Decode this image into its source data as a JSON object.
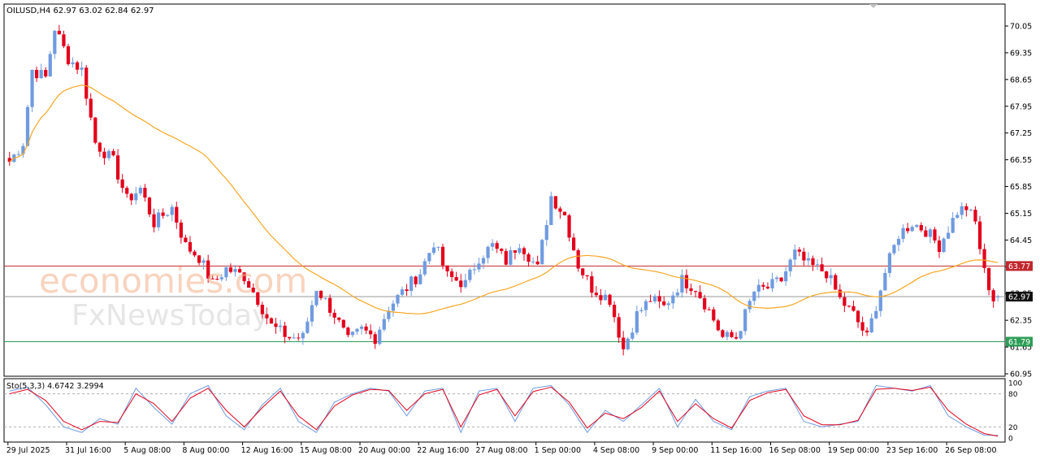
{
  "header": {
    "symbol_info": "OILUSD,H4  62.97 63.02 62.84 62.97",
    "oscillator_info": "Sto(5,3,3) 4.6742 3.2994"
  },
  "watermark": {
    "line1": "economies.com",
    "line2": "FxNewsToday"
  },
  "colors": {
    "bull": "#6f9be0",
    "bear": "#e3001b",
    "ma": "#f5a623",
    "resistance": "#c1272d",
    "support": "#2e9e57",
    "price_tag": "#111111",
    "stoch_main": "#6f9be0",
    "stoch_signal": "#e3001b"
  },
  "chart_data": [
    {
      "type": "candlestick",
      "symbol": "OILUSD",
      "timeframe": "H4",
      "ohlc": {
        "open": 62.97,
        "high": 63.02,
        "low": 62.84,
        "close": 62.97
      },
      "y_ticks": [
        "70.05",
        "69.35",
        "68.65",
        "67.95",
        "67.25",
        "66.55",
        "65.85",
        "65.15",
        "64.45",
        "63.75",
        "63.05",
        "62.35",
        "61.65",
        "60.95"
      ],
      "ylim": [
        60.95,
        70.05
      ],
      "x_labels": [
        "29 Jul 2025",
        "31 Jul 16:00",
        "5 Aug 08:00",
        "8 Aug 00:00",
        "12 Aug 16:00",
        "15 Aug 08:00",
        "20 Aug 00:00",
        "22 Aug 16:00",
        "27 Aug 08:00",
        "1 Sep 00:00",
        "4 Sep 08:00",
        "9 Sep 00:00",
        "11 Sep 16:00",
        "16 Sep 08:00",
        "19 Sep 00:00",
        "23 Sep 16:00",
        "26 Sep 08:00"
      ],
      "candle_count": 220,
      "close_path": [
        [
          0,
          66.5
        ],
        [
          3,
          67.0
        ],
        [
          5,
          68.9
        ],
        [
          8,
          68.7
        ],
        [
          10,
          70.0
        ],
        [
          13,
          69.2
        ],
        [
          16,
          68.9
        ],
        [
          19,
          67.0
        ],
        [
          23,
          66.5
        ],
        [
          26,
          65.5
        ],
        [
          29,
          65.8
        ],
        [
          32,
          64.9
        ],
        [
          36,
          65.3
        ],
        [
          39,
          64.3
        ],
        [
          42,
          64.0
        ],
        [
          45,
          63.3
        ],
        [
          48,
          63.7
        ],
        [
          52,
          63.5
        ],
        [
          55,
          62.9
        ],
        [
          58,
          62.2
        ],
        [
          62,
          61.9
        ],
        [
          65,
          61.9
        ],
        [
          68,
          63.2
        ],
        [
          72,
          62.5
        ],
        [
          75,
          61.8
        ],
        [
          78,
          62.1
        ],
        [
          81,
          61.9
        ],
        [
          84,
          62.7
        ],
        [
          88,
          63.2
        ],
        [
          91,
          63.6
        ],
        [
          94,
          64.4
        ],
        [
          97,
          63.5
        ],
        [
          101,
          63.3
        ],
        [
          104,
          64.0
        ],
        [
          107,
          64.3
        ],
        [
          110,
          63.9
        ],
        [
          113,
          64.4
        ],
        [
          117,
          63.7
        ],
        [
          120,
          65.6
        ],
        [
          123,
          65.1
        ],
        [
          126,
          63.8
        ],
        [
          129,
          63.2
        ],
        [
          133,
          62.9
        ],
        [
          136,
          61.6
        ],
        [
          139,
          62.5
        ],
        [
          142,
          62.9
        ],
        [
          145,
          62.7
        ],
        [
          149,
          63.4
        ],
        [
          152,
          63.2
        ],
        [
          155,
          62.6
        ],
        [
          158,
          61.9
        ],
        [
          161,
          61.9
        ],
        [
          165,
          63.1
        ],
        [
          168,
          63.2
        ],
        [
          171,
          63.4
        ],
        [
          174,
          64.1
        ],
        [
          177,
          63.8
        ],
        [
          181,
          63.6
        ],
        [
          184,
          62.9
        ],
        [
          187,
          62.5
        ],
        [
          190,
          61.9
        ],
        [
          194,
          63.6
        ],
        [
          197,
          64.6
        ],
        [
          200,
          64.9
        ],
        [
          203,
          64.7
        ],
        [
          206,
          64.3
        ],
        [
          210,
          65.2
        ],
        [
          212,
          65.3
        ],
        [
          214,
          64.9
        ],
        [
          216,
          63.6
        ],
        [
          218,
          62.9
        ],
        [
          219,
          62.97
        ]
      ],
      "indicator": {
        "name": "Moving Average",
        "color": "orange"
      },
      "horizontal_levels": [
        {
          "value": 63.77,
          "label": "63.77",
          "color": "red"
        },
        {
          "value": 62.97,
          "label": "62.97",
          "color": "black"
        },
        {
          "value": 61.79,
          "label": "61.79",
          "color": "green"
        }
      ]
    },
    {
      "type": "line",
      "title": "Sto(5,3,3) 4.6742 3.2994",
      "y_ticks": [
        "100",
        "80",
        "20",
        "0"
      ],
      "ylim": [
        0,
        100
      ],
      "levels": [
        80,
        20
      ],
      "series": [
        {
          "name": "Sto(5,3,3)",
          "last": 4.6742,
          "values_path": [
            [
              0,
              85
            ],
            [
              4,
              92
            ],
            [
              8,
              60
            ],
            [
              12,
              20
            ],
            [
              16,
              10
            ],
            [
              20,
              35
            ],
            [
              24,
              25
            ],
            [
              28,
              90
            ],
            [
              32,
              55
            ],
            [
              36,
              25
            ],
            [
              40,
              80
            ],
            [
              44,
              95
            ],
            [
              48,
              40
            ],
            [
              52,
              15
            ],
            [
              56,
              60
            ],
            [
              60,
              90
            ],
            [
              64,
              30
            ],
            [
              68,
              10
            ],
            [
              72,
              65
            ],
            [
              76,
              80
            ],
            [
              80,
              90
            ],
            [
              84,
              85
            ],
            [
              88,
              40
            ],
            [
              92,
              85
            ],
            [
              96,
              90
            ],
            [
              100,
              10
            ],
            [
              104,
              85
            ],
            [
              108,
              90
            ],
            [
              112,
              30
            ],
            [
              116,
              90
            ],
            [
              120,
              95
            ],
            [
              124,
              60
            ],
            [
              128,
              10
            ],
            [
              132,
              50
            ],
            [
              136,
              30
            ],
            [
              140,
              60
            ],
            [
              144,
              90
            ],
            [
              148,
              20
            ],
            [
              152,
              70
            ],
            [
              156,
              30
            ],
            [
              160,
              15
            ],
            [
              164,
              75
            ],
            [
              168,
              85
            ],
            [
              172,
              90
            ],
            [
              176,
              30
            ],
            [
              180,
              20
            ],
            [
              184,
              25
            ],
            [
              188,
              30
            ],
            [
              192,
              95
            ],
            [
              196,
              90
            ],
            [
              200,
              85
            ],
            [
              204,
              95
            ],
            [
              208,
              40
            ],
            [
              212,
              20
            ],
            [
              216,
              5
            ],
            [
              219,
              4.67
            ]
          ]
        },
        {
          "name": "Signal",
          "last": 3.2994,
          "values_path": [
            [
              0,
              80
            ],
            [
              4,
              88
            ],
            [
              8,
              68
            ],
            [
              12,
              30
            ],
            [
              16,
              15
            ],
            [
              20,
              30
            ],
            [
              24,
              28
            ],
            [
              28,
              80
            ],
            [
              32,
              62
            ],
            [
              36,
              30
            ],
            [
              40,
              72
            ],
            [
              44,
              90
            ],
            [
              48,
              50
            ],
            [
              52,
              20
            ],
            [
              56,
              55
            ],
            [
              60,
              85
            ],
            [
              64,
              40
            ],
            [
              68,
              15
            ],
            [
              72,
              58
            ],
            [
              76,
              78
            ],
            [
              80,
              88
            ],
            [
              84,
              86
            ],
            [
              88,
              50
            ],
            [
              92,
              80
            ],
            [
              96,
              88
            ],
            [
              100,
              20
            ],
            [
              104,
              78
            ],
            [
              108,
              88
            ],
            [
              112,
              40
            ],
            [
              116,
              84
            ],
            [
              120,
              92
            ],
            [
              124,
              65
            ],
            [
              128,
              18
            ],
            [
              132,
              45
            ],
            [
              136,
              35
            ],
            [
              140,
              55
            ],
            [
              144,
              85
            ],
            [
              148,
              30
            ],
            [
              152,
              62
            ],
            [
              156,
              35
            ],
            [
              160,
              18
            ],
            [
              164,
              68
            ],
            [
              168,
              82
            ],
            [
              172,
              88
            ],
            [
              176,
              40
            ],
            [
              180,
              24
            ],
            [
              184,
              24
            ],
            [
              188,
              32
            ],
            [
              192,
              88
            ],
            [
              196,
              90
            ],
            [
              200,
              86
            ],
            [
              204,
              92
            ],
            [
              208,
              50
            ],
            [
              212,
              25
            ],
            [
              216,
              8
            ],
            [
              219,
              3.3
            ]
          ]
        }
      ]
    }
  ]
}
